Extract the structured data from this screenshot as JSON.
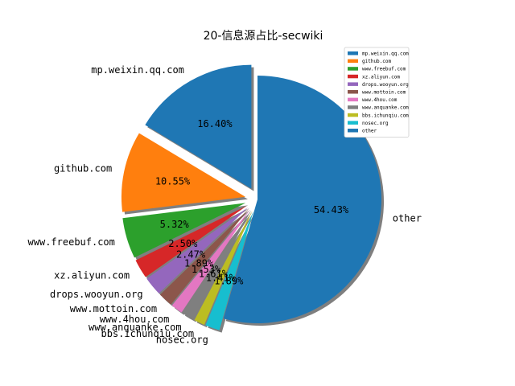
{
  "chart_data": {
    "type": "pie",
    "title": "20-信息源占比-secwiki",
    "legend_position": "top-right",
    "shadow": true,
    "start_angle_deg": 90,
    "direction": "counterclockwise",
    "slices": [
      {
        "label": "mp.weixin.qq.com",
        "value": 16.4,
        "pct_label": "16.40%",
        "color": "#1f77b4",
        "exploded": true
      },
      {
        "label": "github.com",
        "value": 10.55,
        "pct_label": "10.55%",
        "color": "#ff7f0e",
        "exploded": true
      },
      {
        "label": "www.freebuf.com",
        "value": 5.32,
        "pct_label": "5.32%",
        "color": "#2ca02c",
        "exploded": true
      },
      {
        "label": "xz.aliyun.com",
        "value": 2.5,
        "pct_label": "2.50%",
        "color": "#d62728",
        "exploded": true
      },
      {
        "label": "drops.wooyun.org",
        "value": 2.47,
        "pct_label": "2.47%",
        "color": "#9467bd",
        "exploded": true
      },
      {
        "label": "www.mottoin.com",
        "value": 1.89,
        "pct_label": "1.89%",
        "color": "#8c564b",
        "exploded": true
      },
      {
        "label": "www.4hou.com",
        "value": 1.53,
        "pct_label": "1.53%",
        "color": "#e377c2",
        "exploded": true
      },
      {
        "label": "www.anquanke.com",
        "value": 1.61,
        "pct_label": "1.61%",
        "color": "#7f7f7f",
        "exploded": true
      },
      {
        "label": "bbs.ichunqiu.com",
        "value": 1.41,
        "pct_label": "1.41%",
        "color": "#bcbd22",
        "exploded": true
      },
      {
        "label": "nosec.org",
        "value": 1.89,
        "pct_label": "1.89%",
        "color": "#17becf",
        "exploded": true
      },
      {
        "label": "other",
        "value": 54.43,
        "pct_label": "54.43%",
        "color": "#1f77b4",
        "exploded": false
      }
    ]
  }
}
